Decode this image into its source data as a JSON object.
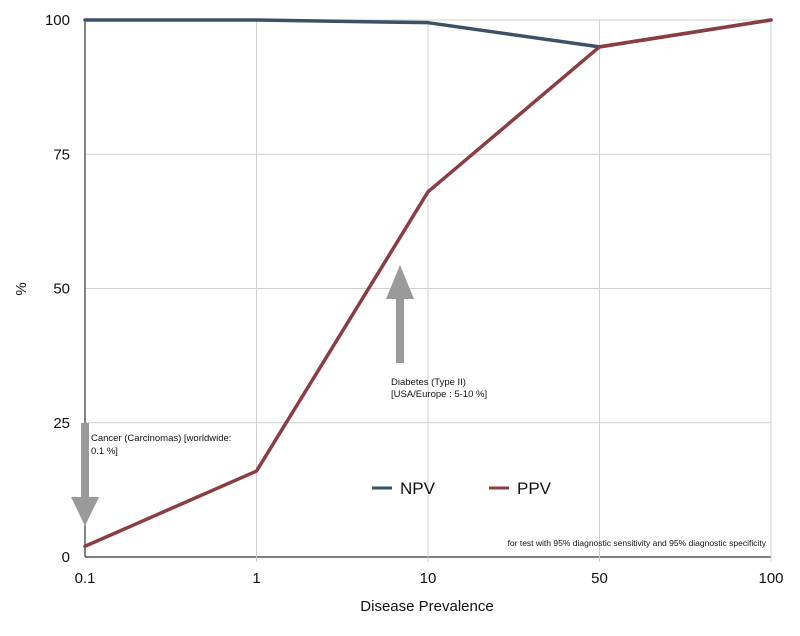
{
  "chart_data": {
    "type": "line",
    "title": "",
    "xlabel": "Disease Prevalence",
    "ylabel": "%",
    "x": [
      "0.1",
      "1",
      "10",
      "50",
      "100"
    ],
    "ylim": [
      0,
      100
    ],
    "yticks": [
      "0",
      "25",
      "50",
      "75",
      "100"
    ],
    "grid": true,
    "legend_position": "bottom-center",
    "series": [
      {
        "name": "NPV",
        "color": "#3d5166",
        "values": [
          100,
          100,
          99.5,
          95,
          100
        ]
      },
      {
        "name": "PPV",
        "color": "#8a3d42",
        "values": [
          2,
          16,
          68,
          95,
          100
        ]
      }
    ],
    "annotations": [
      {
        "id": "cancer",
        "text_lines": [
          "Cancer (Carcinomas) [worldwide:",
          "0.1 %]"
        ],
        "arrow": "down",
        "x_value": "0.1"
      },
      {
        "id": "diabetes",
        "text_lines": [
          "Diabetes (Type II)",
          "[USA/Europe : 5-10 %]"
        ],
        "arrow": "up",
        "x_value": "5-10"
      }
    ],
    "footnote": "for test with 95% diagnostic sensitivity and 95% diagnostic specificity"
  }
}
